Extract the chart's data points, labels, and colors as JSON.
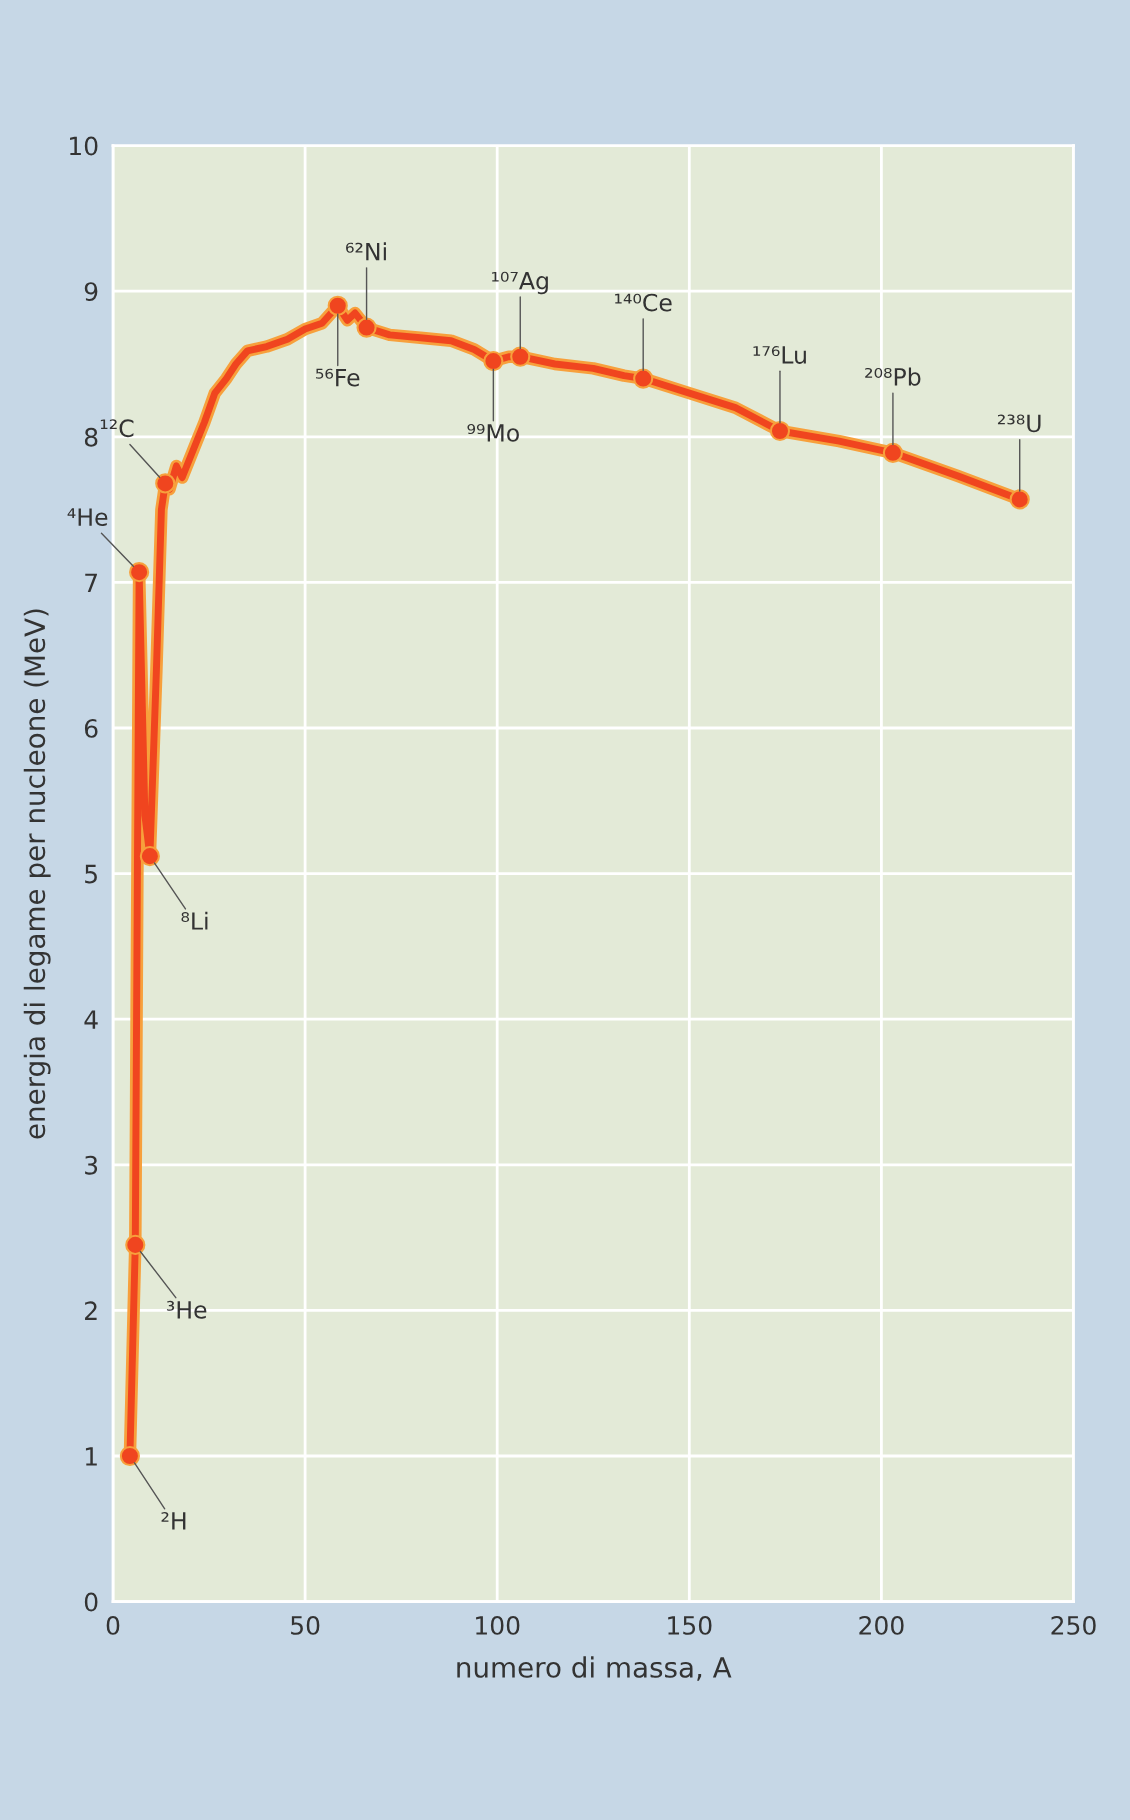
{
  "chart_data": {
    "type": "line",
    "xlabel": "numero di massa, A",
    "ylabel": "energia di legame per nucleone (MeV)",
    "xlim": [
      0,
      250
    ],
    "ylim": [
      0,
      10
    ],
    "xticks": [
      0,
      50,
      100,
      150,
      200,
      250
    ],
    "yticks": [
      0,
      1,
      2,
      3,
      4,
      5,
      6,
      7,
      8,
      9,
      10
    ],
    "grid": true,
    "series": [
      {
        "color": "#f0451f",
        "marker": "none",
        "x": [
          4.4,
          5.8,
          6.8,
          8.3,
          9.6,
          11.3,
          12.6,
          13.6,
          14.7,
          16.5,
          18,
          21.5,
          23.8,
          26.5,
          29.5,
          32,
          35,
          40,
          45.4,
          50,
          54.4,
          58.5,
          61,
          63,
          66,
          72,
          80,
          88,
          94,
          99,
          103,
          106,
          115,
          125,
          133,
          138,
          150,
          162,
          173.6,
          189,
          203,
          220,
          236
        ],
        "values": [
          1.0,
          2.45,
          7.07,
          5.4,
          5.12,
          6.4,
          7.5,
          7.68,
          7.64,
          7.8,
          7.72,
          7.95,
          8.1,
          8.3,
          8.4,
          8.5,
          8.59,
          8.62,
          8.67,
          8.74,
          8.78,
          8.9,
          8.8,
          8.85,
          8.75,
          8.7,
          8.68,
          8.66,
          8.6,
          8.52,
          8.55,
          8.55,
          8.5,
          8.47,
          8.42,
          8.4,
          8.3,
          8.2,
          8.04,
          7.97,
          7.89,
          7.73,
          7.57
        ]
      },
      {
        "type": "scatter",
        "color": "#f0451f",
        "marker": "circle",
        "x": [
          4.4,
          5.8,
          6.8,
          9.6,
          13.6,
          58.5,
          66,
          99,
          106,
          138,
          173.6,
          203,
          236
        ],
        "values": [
          1.0,
          2.45,
          7.07,
          5.12,
          7.68,
          8.9,
          8.75,
          8.52,
          8.55,
          8.4,
          8.04,
          7.89,
          7.57
        ]
      }
    ],
    "annotations": [
      {
        "text": "²H",
        "x": 4.4,
        "y": 1.0
      },
      {
        "text": "³He",
        "x": 5.8,
        "y": 2.45
      },
      {
        "text": "⁴He",
        "x": 6.8,
        "y": 7.07
      },
      {
        "text": "⁸Li",
        "x": 9.6,
        "y": 5.12
      },
      {
        "text": "¹²C",
        "x": 13.6,
        "y": 7.68
      },
      {
        "text": "⁵⁶Fe",
        "x": 58.5,
        "y": 8.9
      },
      {
        "text": "⁶²Ni",
        "x": 66,
        "y": 8.75
      },
      {
        "text": "⁹⁹Mo",
        "x": 99,
        "y": 8.52
      },
      {
        "text": "¹⁰⁷Ag",
        "x": 106,
        "y": 8.55
      },
      {
        "text": "¹⁴⁰Ce",
        "x": 138,
        "y": 8.4
      },
      {
        "text": "¹⁷⁶Lu",
        "x": 173.6,
        "y": 8.04
      },
      {
        "text": "²⁰⁸Pb",
        "x": 203,
        "y": 7.89
      },
      {
        "text": "²³⁸U",
        "x": 236,
        "y": 7.57
      }
    ]
  }
}
